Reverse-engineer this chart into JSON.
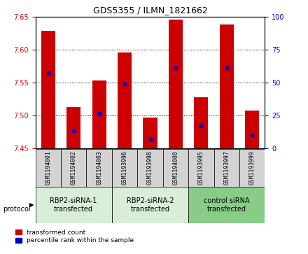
{
  "title": "GDS5355 / ILMN_1821662",
  "samples": [
    "GSM1194001",
    "GSM1194002",
    "GSM1194003",
    "GSM1193996",
    "GSM1193998",
    "GSM1194000",
    "GSM1193995",
    "GSM1193997",
    "GSM1193999"
  ],
  "bar_bottoms": [
    7.45,
    7.45,
    7.45,
    7.45,
    7.45,
    7.45,
    7.45,
    7.45,
    7.45
  ],
  "bar_tops": [
    7.628,
    7.513,
    7.553,
    7.596,
    7.497,
    7.645,
    7.528,
    7.638,
    7.508
  ],
  "percentile_positions": [
    7.565,
    7.477,
    7.503,
    7.548,
    7.464,
    7.572,
    7.484,
    7.572,
    7.47
  ],
  "ylim": [
    7.45,
    7.65
  ],
  "yticks": [
    7.45,
    7.5,
    7.55,
    7.6,
    7.65
  ],
  "right_yticks": [
    0,
    25,
    50,
    75,
    100
  ],
  "right_ylim": [
    0,
    100
  ],
  "bar_color": "#cc0000",
  "percentile_color": "#0000cc",
  "grid_color": "#000000",
  "groups": [
    {
      "label": "RBP2-siRNA-1\ntransfected",
      "start": 0,
      "end": 3,
      "color": "#d8eed8"
    },
    {
      "label": "RBP2-siRNA-2\ntransfected",
      "start": 3,
      "end": 6,
      "color": "#d8eed8"
    },
    {
      "label": "control siRNA\ntransfected",
      "start": 6,
      "end": 9,
      "color": "#88cc88"
    }
  ],
  "protocol_label": "protocol",
  "bar_width": 0.55,
  "left_tick_color": "#cc0000",
  "right_tick_color": "#0000cc"
}
